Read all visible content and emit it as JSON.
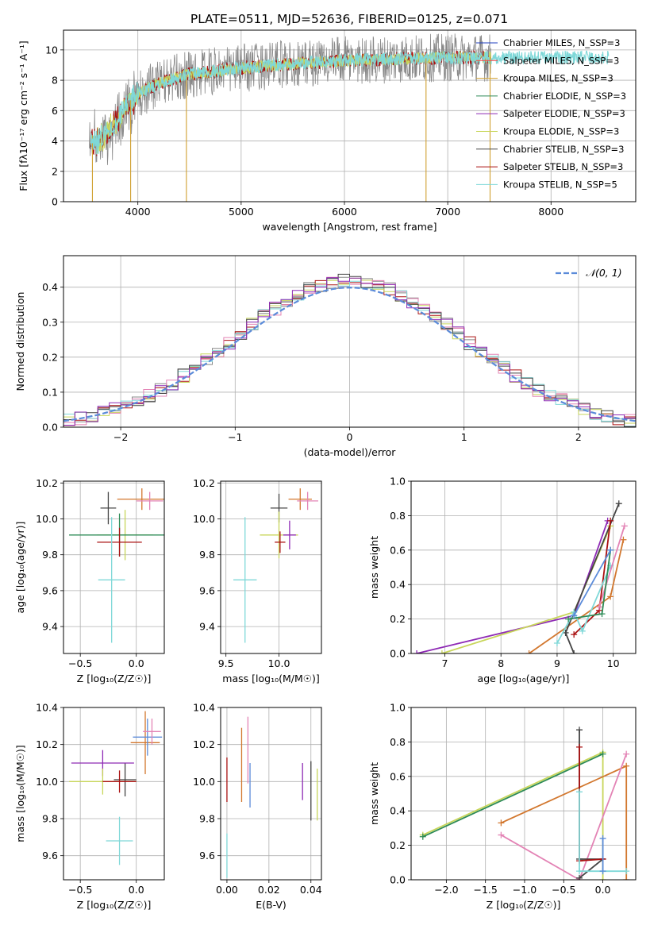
{
  "title": "PLATE=0511, MJD=52636, FIBERID=0125, z=0.071",
  "colors": {
    "chabrier_miles": "#1f3fbf",
    "salpeter_miles": "#ff4040",
    "kroupa_miles": "#d0a030",
    "chabrier_elodie": "#2e8b57",
    "salpeter_elodie": "#8e2ab5",
    "kroupa_elodie": "#c8d65a",
    "chabrier_stelib": "#444444",
    "salpeter_stelib": "#aa1111",
    "kroupa_stelib": "#7fd8d8",
    "grey": "#888888",
    "orange": "#d2772e",
    "blue": "#5b8bd9",
    "pink": "#e383b5",
    "green": "#b9cf4a"
  },
  "chart_data": [
    {
      "id": "spectrum",
      "type": "line",
      "title": "PLATE=0511, MJD=52636, FIBERID=0125, z=0.071",
      "xlabel": "wavelength [Angstrom, rest frame]",
      "ylabel": "Flux [fλ10⁻¹⁷ erg cm⁻² s⁻¹ A⁻¹]",
      "xlim": [
        3280,
        8820
      ],
      "ylim": [
        0,
        11.3
      ],
      "xticks": [
        4000,
        5000,
        6000,
        7000,
        8000
      ],
      "yticks": [
        0,
        2,
        4,
        6,
        8,
        10
      ],
      "continuum": {
        "x": [
          3550,
          3700,
          3800,
          3900,
          4000,
          4200,
          4500,
          5000,
          5500,
          6000,
          6500,
          7000,
          7500
        ],
        "y": [
          3.8,
          4.5,
          5.3,
          6.5,
          7.1,
          7.8,
          8.4,
          8.8,
          9.1,
          9.3,
          9.4,
          9.5,
          9.5
        ]
      },
      "legend": [
        "Chabrier MILES, N_SSP=3",
        "Salpeter MILES, N_SSP=3",
        "Kroupa MILES, N_SSP=3",
        "Chabrier ELODIE, N_SSP=3",
        "Salpeter ELODIE, N_SSP=3",
        "Kroupa ELODIE, N_SSP=3",
        "Chabrier STELIB, N_SSP=3",
        "Salpeter STELIB, N_SSP=3",
        "Kroupa STELIB, N_SSP=5"
      ],
      "legend_placement": "right"
    },
    {
      "id": "residuals",
      "type": "line",
      "xlabel": "(data-model)/error",
      "ylabel": "Normed distribution",
      "xlim": [
        -2.5,
        2.5
      ],
      "ylim": [
        0,
        0.49
      ],
      "xticks": [
        -2,
        -1,
        0,
        1,
        2
      ],
      "yticks": [
        0.0,
        0.1,
        0.2,
        0.3,
        0.4
      ],
      "legend": [
        "𝒩(0, 1)"
      ],
      "legend_placement": "top-right",
      "bin_width": 0.1
    },
    {
      "id": "age_vs_Z",
      "type": "scatter",
      "xlabel": "Z [log₁₀(Z/Z☉)]",
      "ylabel": "age  [log₁₀(age/yr)]",
      "xlim": [
        -0.65,
        0.25
      ],
      "ylim": [
        9.25,
        10.21
      ],
      "xticks": [
        -0.5,
        0.0
      ],
      "yticks": [
        9.4,
        9.6,
        9.8,
        10.0,
        10.2
      ],
      "points": [
        {
          "x": -0.25,
          "xerr": 0.07,
          "y": 10.06,
          "yerr": 0.09,
          "color": "#444444"
        },
        {
          "x": -0.1,
          "xerr": 0.25,
          "y": 9.91,
          "yerr": 0.14,
          "color": "#c8d65a"
        },
        {
          "x": -0.15,
          "xerr": 0.45,
          "y": 9.91,
          "yerr": 0.12,
          "color": "#2e8b57"
        },
        {
          "x": -0.15,
          "xerr": 0.2,
          "y": 9.87,
          "yerr": 0.08,
          "color": "#aa1111"
        },
        {
          "x": 0.05,
          "xerr": 0.22,
          "y": 10.11,
          "yerr": 0.06,
          "color": "#d2772e"
        },
        {
          "x": 0.12,
          "xerr": 0.12,
          "y": 10.1,
          "yerr": 0.05,
          "color": "#e383b5"
        },
        {
          "x": -0.22,
          "xerr": 0.12,
          "y": 9.66,
          "yerr": 0.35,
          "color": "#7fd8d8"
        }
      ]
    },
    {
      "id": "age_vs_mass",
      "type": "scatter",
      "xlabel": "mass [log₁₀(M/M☉)]",
      "ylabel": "",
      "xlim": [
        9.45,
        10.4
      ],
      "ylim": [
        9.25,
        10.21
      ],
      "xticks": [
        9.5,
        10.0
      ],
      "yticks": [
        9.4,
        9.6,
        9.8,
        10.0,
        10.2
      ],
      "points": [
        {
          "x": 10.0,
          "xerr": 0.08,
          "y": 10.06,
          "yerr": 0.08,
          "color": "#444444"
        },
        {
          "x": 10.0,
          "xerr": 0.18,
          "y": 9.91,
          "yerr": 0.13,
          "color": "#c8d65a"
        },
        {
          "x": 10.1,
          "xerr": 0.06,
          "y": 9.91,
          "yerr": 0.08,
          "color": "#8e2ab5"
        },
        {
          "x": 10.01,
          "xerr": 0.05,
          "y": 9.87,
          "yerr": 0.06,
          "color": "#aa1111"
        },
        {
          "x": 10.2,
          "xerr": 0.11,
          "y": 10.11,
          "yerr": 0.06,
          "color": "#d2772e"
        },
        {
          "x": 10.27,
          "xerr": 0.1,
          "y": 10.1,
          "yerr": 0.05,
          "color": "#e383b5"
        },
        {
          "x": 9.68,
          "xerr": 0.11,
          "y": 9.66,
          "yerr": 0.35,
          "color": "#7fd8d8"
        }
      ]
    },
    {
      "id": "weight_vs_age",
      "type": "line",
      "xlabel": "age  [log₁₀(age/yr)]",
      "ylabel": "mass weight",
      "xlim": [
        6.4,
        10.4
      ],
      "ylim": [
        0,
        1.0
      ],
      "xticks": [
        7,
        8,
        9,
        10
      ],
      "yticks": [
        0.0,
        0.2,
        0.4,
        0.6,
        0.8,
        1.0
      ],
      "series": [
        {
          "color": "#8e2ab5",
          "x": [
            6.5,
            9.3,
            9.9
          ],
          "y": [
            0.0,
            0.22,
            0.77
          ]
        },
        {
          "color": "#c8d65a",
          "x": [
            6.95,
            9.3,
            9.95
          ],
          "y": [
            0.0,
            0.24,
            0.74
          ]
        },
        {
          "color": "#d2772e",
          "x": [
            8.5,
            9.95,
            10.18
          ],
          "y": [
            0.0,
            0.33,
            0.66
          ]
        },
        {
          "color": "#444444",
          "x": [
            9.3,
            9.15,
            10.1
          ],
          "y": [
            0.0,
            0.12,
            0.87
          ]
        },
        {
          "color": "#aa1111",
          "x": [
            9.3,
            9.75,
            9.95
          ],
          "y": [
            0.11,
            0.25,
            0.77
          ]
        },
        {
          "color": "#7fd8d8",
          "x": [
            9.0,
            9.3,
            9.45,
            9.95
          ],
          "y": [
            0.06,
            0.24,
            0.13,
            0.51
          ]
        },
        {
          "color": "#e383b5",
          "x": [
            9.75,
            10.2
          ],
          "y": [
            0.27,
            0.74
          ]
        },
        {
          "color": "#2e8b57",
          "x": [
            9.2,
            9.8,
            9.95
          ],
          "y": [
            0.2,
            0.23,
            0.6
          ]
        },
        {
          "color": "#5b8bd9",
          "x": [
            9.3,
            9.95
          ],
          "y": [
            0.22,
            0.6
          ]
        }
      ]
    },
    {
      "id": "mass_vs_Z",
      "type": "scatter",
      "xlabel": "Z [log₁₀(Z/Z☉)]",
      "ylabel": "mass [log₁₀(M/M☉)]",
      "xlim": [
        -0.65,
        0.25
      ],
      "ylim": [
        9.47,
        10.4
      ],
      "xticks": [
        -0.5,
        0.0
      ],
      "yticks": [
        9.6,
        9.8,
        10.0,
        10.2,
        10.4
      ],
      "points": [
        {
          "x": -0.1,
          "xerr": 0.1,
          "y": 10.01,
          "yerr": 0.09,
          "color": "#444444"
        },
        {
          "x": -0.3,
          "xerr": 0.28,
          "y": 10.1,
          "yerr": 0.07,
          "color": "#8e2ab5"
        },
        {
          "x": -0.3,
          "xerr": 0.3,
          "y": 10.0,
          "yerr": 0.07,
          "color": "#c8d65a"
        },
        {
          "x": -0.15,
          "xerr": 0.15,
          "y": 10.0,
          "yerr": 0.06,
          "color": "#aa1111"
        },
        {
          "x": 0.08,
          "xerr": 0.13,
          "y": 10.21,
          "yerr": 0.17,
          "color": "#d2772e"
        },
        {
          "x": 0.1,
          "xerr": 0.13,
          "y": 10.24,
          "yerr": 0.1,
          "color": "#5b8bd9"
        },
        {
          "x": 0.14,
          "xerr": 0.08,
          "y": 10.27,
          "yerr": 0.07,
          "color": "#e383b5"
        },
        {
          "x": -0.15,
          "xerr": 0.12,
          "y": 9.68,
          "yerr": 0.13,
          "color": "#7fd8d8"
        }
      ]
    },
    {
      "id": "mass_vs_ebv",
      "type": "scatter",
      "xlabel": "E(B-V)",
      "ylabel": "",
      "xlim": [
        -0.003,
        0.045
      ],
      "ylim": [
        9.47,
        10.4
      ],
      "xticks": [
        0.0,
        0.02,
        0.04
      ],
      "yticks": [
        9.6,
        9.8,
        10.0,
        10.2,
        10.4
      ],
      "points": [
        {
          "x": 0.0,
          "y": 10.01,
          "yerr": 0.12,
          "color": "#aa1111"
        },
        {
          "x": 0.0,
          "y": 9.6,
          "yerr": 0.12,
          "color": "#7fd8d8"
        },
        {
          "x": 0.007,
          "y": 10.09,
          "yerr": 0.2,
          "color": "#d2772e"
        },
        {
          "x": 0.01,
          "y": 10.17,
          "yerr": 0.18,
          "color": "#e383b5"
        },
        {
          "x": 0.011,
          "y": 9.98,
          "yerr": 0.12,
          "color": "#5b8bd9"
        },
        {
          "x": 0.036,
          "y": 10.0,
          "yerr": 0.1,
          "color": "#8e2ab5"
        },
        {
          "x": 0.04,
          "y": 9.95,
          "yerr": 0.16,
          "color": "#444444"
        },
        {
          "x": 0.043,
          "y": 9.93,
          "yerr": 0.14,
          "color": "#c8d65a"
        }
      ]
    },
    {
      "id": "weight_vs_Z",
      "type": "line",
      "xlabel": "Z [log₁₀(Z/Z☉)]",
      "ylabel": "mass weight",
      "xlim": [
        -2.45,
        0.42
      ],
      "ylim": [
        0,
        1.0
      ],
      "xticks": [
        -2.0,
        -1.5,
        -1.0,
        -0.5,
        0.0
      ],
      "yticks": [
        0.0,
        0.2,
        0.4,
        0.6,
        0.8,
        1.0
      ],
      "series": [
        {
          "color": "#c8d65a",
          "x": [
            -2.3,
            0.0,
            0.0
          ],
          "y": [
            0.26,
            0.74,
            0.0
          ]
        },
        {
          "color": "#2e8b57",
          "x": [
            -2.3,
            0.0
          ],
          "y": [
            0.25,
            0.73
          ]
        },
        {
          "color": "#d2772e",
          "x": [
            -1.3,
            0.3,
            0.3
          ],
          "y": [
            0.33,
            0.66,
            0.0
          ]
        },
        {
          "color": "#e383b5",
          "x": [
            -1.3,
            -0.3,
            0.3
          ],
          "y": [
            0.26,
            0.0,
            0.73
          ]
        },
        {
          "color": "#444444",
          "x": [
            -0.3,
            -0.3,
            0.0,
            -0.3
          ],
          "y": [
            0.87,
            0.12,
            0.12,
            0.01
          ]
        },
        {
          "color": "#aa1111",
          "x": [
            -0.3,
            -0.3,
            0.0
          ],
          "y": [
            0.77,
            0.11,
            0.12
          ]
        },
        {
          "color": "#7fd8d8",
          "x": [
            -0.3,
            -0.3,
            0.0,
            0.3
          ],
          "y": [
            0.51,
            0.05,
            0.05,
            0.05
          ]
        },
        {
          "color": "#5b8bd9",
          "x": [
            0.0,
            0.0
          ],
          "y": [
            0.05,
            0.24
          ]
        }
      ]
    }
  ]
}
